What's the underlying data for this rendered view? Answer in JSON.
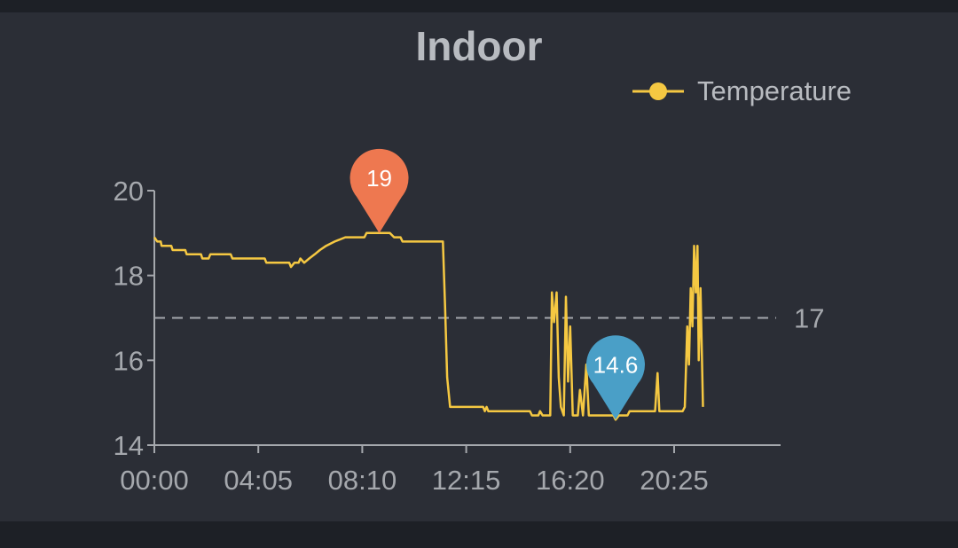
{
  "colors": {
    "background": "#2b2e36",
    "series": "#f5c842",
    "axis": "#a5a8ad",
    "max_marker": "#ee7850",
    "min_marker": "#4a9fc7",
    "reference_line": "#a5a8ad"
  },
  "chart_data": {
    "type": "line",
    "title": "Indoor",
    "legend": {
      "position": "top-right",
      "entries": [
        "Temperature"
      ]
    },
    "x_axis": {
      "unit": "minutes-of-day",
      "range": [
        0,
        1380
      ],
      "ticks": [
        0,
        245,
        490,
        735,
        980,
        1225
      ],
      "tick_labels": [
        "00:00",
        "04:05",
        "08:10",
        "12:15",
        "16:20",
        "20:25"
      ]
    },
    "y_axis": {
      "range": [
        14,
        20
      ],
      "ticks": [
        14,
        16,
        18,
        20
      ],
      "tick_labels": [
        "14",
        "16",
        "18",
        "20"
      ]
    },
    "grid": false,
    "reference_line": {
      "value": 17,
      "label": "17",
      "style": "dashed"
    },
    "markers": [
      {
        "kind": "max",
        "x": 530,
        "y": 19,
        "label": "19"
      },
      {
        "kind": "min",
        "x": 1087,
        "y": 14.6,
        "label": "14.6"
      }
    ],
    "series": [
      {
        "name": "Temperature",
        "points": [
          [
            0,
            18.9
          ],
          [
            7,
            18.8
          ],
          [
            15,
            18.8
          ],
          [
            17,
            18.7
          ],
          [
            40,
            18.7
          ],
          [
            43,
            18.6
          ],
          [
            73,
            18.6
          ],
          [
            76,
            18.5
          ],
          [
            110,
            18.5
          ],
          [
            113,
            18.4
          ],
          [
            128,
            18.4
          ],
          [
            132,
            18.5
          ],
          [
            180,
            18.5
          ],
          [
            184,
            18.4
          ],
          [
            260,
            18.4
          ],
          [
            264,
            18.3
          ],
          [
            318,
            18.3
          ],
          [
            322,
            18.2
          ],
          [
            330,
            18.3
          ],
          [
            340,
            18.3
          ],
          [
            344,
            18.4
          ],
          [
            353,
            18.3
          ],
          [
            365,
            18.4
          ],
          [
            378,
            18.5
          ],
          [
            390,
            18.6
          ],
          [
            405,
            18.7
          ],
          [
            425,
            18.8
          ],
          [
            450,
            18.9
          ],
          [
            495,
            18.9
          ],
          [
            500,
            19.0
          ],
          [
            555,
            19.0
          ],
          [
            565,
            18.9
          ],
          [
            580,
            18.9
          ],
          [
            585,
            18.8
          ],
          [
            680,
            18.8
          ],
          [
            685,
            17.3
          ],
          [
            690,
            15.6
          ],
          [
            697,
            14.9
          ],
          [
            775,
            14.9
          ],
          [
            779,
            14.8
          ],
          [
            783,
            14.9
          ],
          [
            787,
            14.8
          ],
          [
            885,
            14.8
          ],
          [
            890,
            14.7
          ],
          [
            905,
            14.7
          ],
          [
            909,
            14.8
          ],
          [
            915,
            14.7
          ],
          [
            933,
            14.7
          ],
          [
            937,
            17.6
          ],
          [
            942,
            16.9
          ],
          [
            948,
            17.6
          ],
          [
            953,
            15.6
          ],
          [
            958,
            14.9
          ],
          [
            965,
            14.7
          ],
          [
            970,
            17.5
          ],
          [
            975,
            15.5
          ],
          [
            980,
            16.8
          ],
          [
            986,
            14.7
          ],
          [
            998,
            14.7
          ],
          [
            1003,
            15.3
          ],
          [
            1010,
            14.7
          ],
          [
            1018,
            15.9
          ],
          [
            1024,
            14.7
          ],
          [
            1030,
            14.7
          ],
          [
            1082,
            14.7
          ],
          [
            1087,
            14.6
          ],
          [
            1095,
            14.7
          ],
          [
            1115,
            14.7
          ],
          [
            1120,
            14.8
          ],
          [
            1180,
            14.8
          ],
          [
            1186,
            15.7
          ],
          [
            1190,
            14.8
          ],
          [
            1245,
            14.8
          ],
          [
            1250,
            14.9
          ],
          [
            1256,
            16.8
          ],
          [
            1260,
            15.9
          ],
          [
            1264,
            17.7
          ],
          [
            1268,
            16.8
          ],
          [
            1272,
            18.7
          ],
          [
            1276,
            17.6
          ],
          [
            1280,
            18.7
          ],
          [
            1283,
            16.0
          ],
          [
            1287,
            17.7
          ],
          [
            1293,
            14.9
          ]
        ]
      }
    ]
  }
}
